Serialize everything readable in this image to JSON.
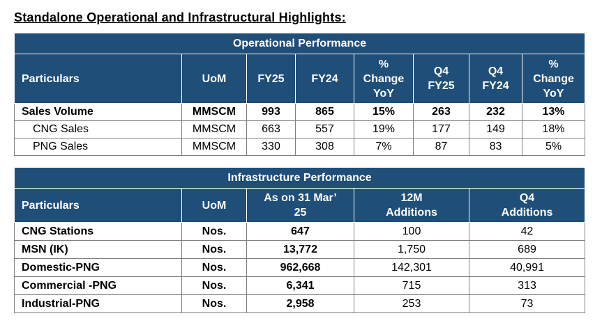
{
  "title": "Standalone Operational and Infrastructural Highlights:",
  "operational": {
    "caption": "Operational Performance",
    "headers": [
      "Particulars",
      "UoM",
      "FY25",
      "FY24",
      [
        "%",
        "Change",
        "YoY"
      ],
      [
        "Q4",
        "FY25"
      ],
      [
        "Q4",
        "FY24"
      ],
      [
        "%",
        "Change",
        "YoY"
      ]
    ],
    "rows": [
      {
        "cells": [
          "Sales Volume",
          "MMSCM",
          "993",
          "865",
          "15%",
          "263",
          "232",
          "13%"
        ],
        "bold": true
      },
      {
        "cells": [
          "CNG Sales",
          "MMSCM",
          "663",
          "557",
          "19%",
          "177",
          "149",
          "18%"
        ],
        "bold": false
      },
      {
        "cells": [
          "PNG Sales",
          "MMSCM",
          "330",
          "308",
          "7%",
          "87",
          "83",
          "5%"
        ],
        "bold": false
      }
    ]
  },
  "infrastructure": {
    "caption": "Infrastructure Performance",
    "headers": [
      "Particulars",
      "UoM",
      [
        "As on 31 Mar’",
        "25"
      ],
      [
        "12M",
        "Additions"
      ],
      [
        "Q4",
        "Additions"
      ]
    ],
    "rows": [
      [
        "CNG Stations",
        "Nos.",
        "647",
        "100",
        "42"
      ],
      [
        "MSN (IK)",
        "Nos.",
        "13,772",
        "1,750",
        "689"
      ],
      [
        "Domestic-PNG",
        "Nos.",
        "962,668",
        "142,301",
        "40,991"
      ],
      [
        "Commercial -PNG",
        "Nos.",
        "6,341",
        "715",
        "313"
      ],
      [
        "Industrial-PNG",
        "Nos.",
        "2,958",
        "253",
        "73"
      ]
    ]
  }
}
